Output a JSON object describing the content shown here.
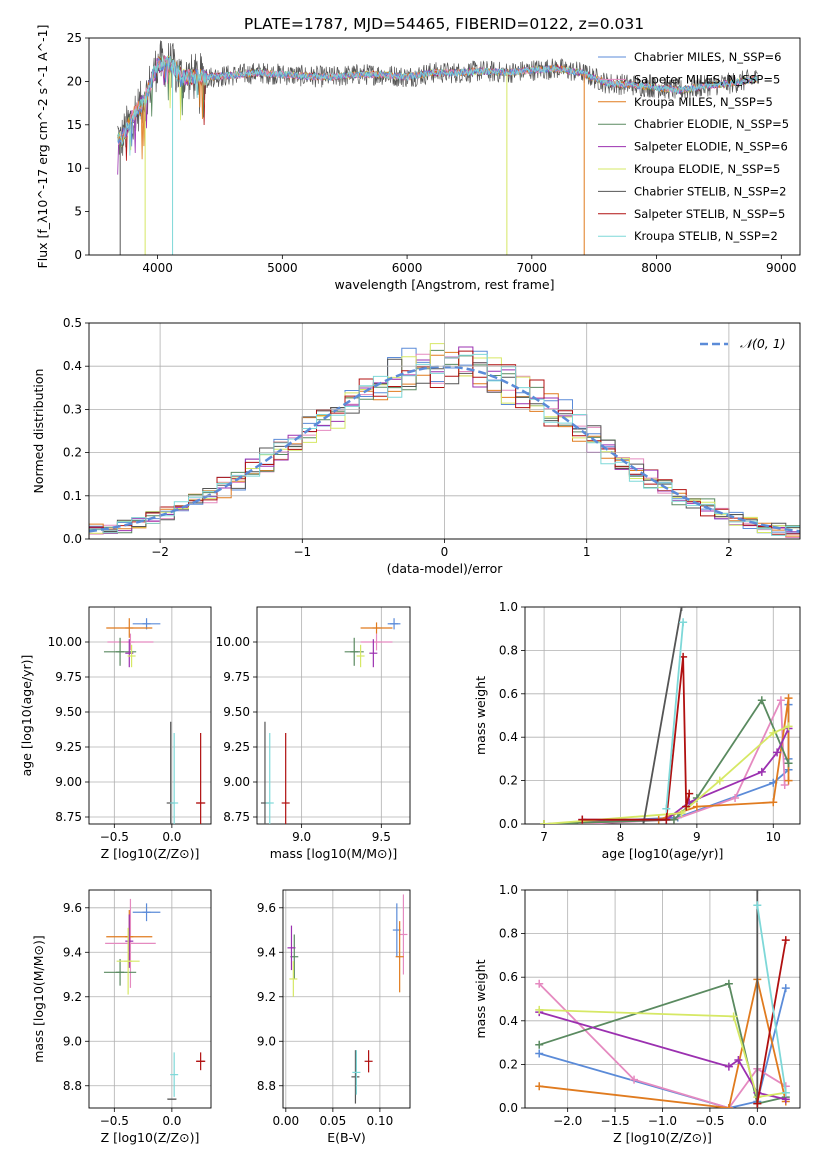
{
  "figure": {
    "title": "PLATE=1787, MJD=54465, FIBERID=0122, z=0.031"
  },
  "colors": {
    "chabrier_miles": "#5b8bd8",
    "salpeter_miles": "#e58ac0",
    "kroupa_miles": "#e07b1f",
    "chabrier_elodie": "#5a8a60",
    "salpeter_elodie": "#9b30b0",
    "kroupa_elodie": "#d6e865",
    "chabrier_stelib": "#555555",
    "salpeter_stelib": "#b01010",
    "kroupa_stelib": "#7ed8d8",
    "gaussian": "#5b8bd8"
  },
  "chart_data": [
    {
      "id": "spectrum",
      "type": "line",
      "title": "PLATE=1787, MJD=54465, FIBERID=0122, z=0.031",
      "xlabel": "wavelength [Angstrom, rest frame]",
      "ylabel": "Flux [f_λ10^-17 erg cm^-2 s^-1 A^-1]",
      "xlim": [
        3450,
        9150
      ],
      "ylim": [
        0,
        25
      ],
      "xticks": [
        4000,
        5000,
        6000,
        7000,
        8000,
        9000
      ],
      "yticks": [
        0,
        5,
        10,
        15,
        20,
        25
      ],
      "grid": false,
      "legend_position": "upper-right",
      "series": [
        {
          "name": "Chabrier MILES, N_SSP=6",
          "color_key": "chabrier_miles"
        },
        {
          "name": "Salpeter MILES, N_SSP=5",
          "color_key": "salpeter_miles"
        },
        {
          "name": "Kroupa MILES, N_SSP=5",
          "color_key": "kroupa_miles"
        },
        {
          "name": "Chabrier ELODIE, N_SSP=5",
          "color_key": "chabrier_elodie"
        },
        {
          "name": "Salpeter ELODIE, N_SSP=6",
          "color_key": "salpeter_elodie"
        },
        {
          "name": "Kroupa ELODIE, N_SSP=5",
          "color_key": "kroupa_elodie"
        },
        {
          "name": "Chabrier STELIB, N_SSP=2",
          "color_key": "chabrier_stelib"
        },
        {
          "name": "Salpeter STELIB, N_SSP=5",
          "color_key": "salpeter_stelib"
        },
        {
          "name": "Kroupa STELIB, N_SSP=2",
          "color_key": "kroupa_stelib"
        }
      ],
      "continuum": {
        "x": [
          3680,
          3700,
          3800,
          3900,
          4000,
          4100,
          4200,
          4400,
          4600,
          4800,
          5000,
          5200,
          5400,
          5600,
          5800,
          6000,
          6200,
          6400,
          6600,
          6800,
          7000,
          7200,
          7400,
          7600,
          7800,
          8000,
          8200,
          8400,
          8600,
          8800
        ],
        "y": [
          14,
          13,
          16,
          18,
          22,
          22,
          20.5,
          20.5,
          20.7,
          21,
          20.8,
          20.6,
          20.5,
          20.8,
          20.8,
          20.5,
          21,
          21,
          21.2,
          21,
          21.3,
          21.5,
          21,
          19.8,
          19.6,
          19.3,
          19,
          19.5,
          19.8,
          20.3
        ]
      },
      "dropouts": [
        {
          "x": 3700,
          "to": 0
        },
        {
          "x": 3900,
          "to": 0
        },
        {
          "x": 4120,
          "to": 0
        },
        {
          "x": 6800,
          "to": 0
        },
        {
          "x": 7420,
          "to": 0
        }
      ]
    },
    {
      "id": "residuals",
      "type": "bar",
      "xlabel": "(data-model)/error",
      "ylabel": "Normed distribution",
      "xlim": [
        -2.5,
        2.5
      ],
      "ylim": [
        0,
        0.5
      ],
      "xticks": [
        -2,
        -1,
        0,
        1,
        2
      ],
      "yticks": [
        0.0,
        0.1,
        0.2,
        0.3,
        0.4,
        0.5
      ],
      "grid": true,
      "legend_position": "upper-right",
      "legend": [
        "𝒩(0, 1)"
      ],
      "bin_width": 0.1,
      "gaussian": {
        "mean": 0,
        "sigma": 1
      }
    },
    {
      "id": "age_vs_Z",
      "type": "scatter",
      "xlabel": "Z [log10(Z/Z⊙)]",
      "ylabel": "age [log10(age/yr)]",
      "xlim": [
        -0.72,
        0.34
      ],
      "ylim": [
        8.7,
        10.25
      ],
      "xticks": [
        -0.5,
        0.0
      ],
      "yticks": [
        8.75,
        9.0,
        9.25,
        9.5,
        9.75,
        10.0
      ],
      "grid": true,
      "points": [
        {
          "x": -0.22,
          "y": 10.13,
          "dx": 0.12,
          "dy": 0.04,
          "c": "chabrier_miles"
        },
        {
          "x": -0.36,
          "y": 10.0,
          "dx": 0.2,
          "dy": 0.06,
          "c": "salpeter_miles"
        },
        {
          "x": -0.37,
          "y": 10.1,
          "dx": 0.2,
          "dy": 0.07,
          "c": "kroupa_miles"
        },
        {
          "x": -0.45,
          "y": 9.93,
          "dx": 0.14,
          "dy": 0.1,
          "c": "chabrier_elodie"
        },
        {
          "x": -0.37,
          "y": 9.92,
          "dx": 0.0,
          "dy": 0.1,
          "c": "salpeter_elodie"
        },
        {
          "x": -0.35,
          "y": 9.9,
          "dx": 0.0,
          "dy": 0.08,
          "c": "kroupa_elodie"
        },
        {
          "x": -0.01,
          "y": 8.85,
          "dx": 0.0,
          "dy": 0.58,
          "c": "chabrier_stelib"
        },
        {
          "x": 0.25,
          "y": 8.85,
          "dx": 0.04,
          "dy": 0.5,
          "c": "salpeter_stelib"
        },
        {
          "x": 0.02,
          "y": 8.85,
          "dx": 0.0,
          "dy": 0.5,
          "c": "kroupa_stelib"
        }
      ]
    },
    {
      "id": "age_vs_mass",
      "type": "scatter",
      "xlabel": "mass [log10(M/M⊙)]",
      "ylabel": "",
      "xlim": [
        8.72,
        9.68
      ],
      "ylim": [
        8.7,
        10.25
      ],
      "xticks": [
        9.0,
        9.5
      ],
      "yticks": [
        8.75,
        9.0,
        9.25,
        9.5,
        9.75,
        10.0
      ],
      "grid": true,
      "points": [
        {
          "x": 9.58,
          "y": 10.13,
          "dx": 0.04,
          "dy": 0.04,
          "c": "chabrier_miles"
        },
        {
          "x": 9.47,
          "y": 10.0,
          "dx": 0.1,
          "dy": 0.06,
          "c": "salpeter_miles"
        },
        {
          "x": 9.47,
          "y": 10.1,
          "dx": 0.1,
          "dy": 0.04,
          "c": "kroupa_miles"
        },
        {
          "x": 9.33,
          "y": 9.93,
          "dx": 0.06,
          "dy": 0.1,
          "c": "chabrier_elodie"
        },
        {
          "x": 9.45,
          "y": 9.92,
          "dx": 0.0,
          "dy": 0.1,
          "c": "salpeter_elodie"
        },
        {
          "x": 9.37,
          "y": 9.9,
          "dx": 0.0,
          "dy": 0.08,
          "c": "kroupa_elodie"
        },
        {
          "x": 8.77,
          "y": 8.85,
          "dx": 0.0,
          "dy": 0.58,
          "c": "chabrier_stelib"
        },
        {
          "x": 8.9,
          "y": 8.85,
          "dx": 0.0,
          "dy": 0.5,
          "c": "salpeter_stelib"
        },
        {
          "x": 8.8,
          "y": 8.85,
          "dx": 0.0,
          "dy": 0.5,
          "c": "kroupa_stelib"
        }
      ]
    },
    {
      "id": "weight_vs_age",
      "type": "line",
      "xlabel": "age [log10(age/yr)]",
      "ylabel": "mass weight",
      "xlim": [
        6.75,
        10.35
      ],
      "ylim": [
        0,
        1.0
      ],
      "xticks": [
        7,
        8,
        9,
        10
      ],
      "yticks": [
        0.0,
        0.2,
        0.4,
        0.6,
        0.8,
        1.0
      ],
      "grid": true,
      "series": [
        {
          "c": "chabrier_miles",
          "x": [
            7.0,
            8.75,
            10.0,
            10.2,
            10.2,
            10.2
          ],
          "y": [
            0.0,
            0.03,
            0.19,
            0.25,
            0.55,
            0.3
          ]
        },
        {
          "c": "salpeter_miles",
          "x": [
            7.5,
            8.7,
            9.5,
            10.1,
            10.15
          ],
          "y": [
            0.0,
            0.02,
            0.12,
            0.57,
            0.18
          ]
        },
        {
          "c": "kroupa_miles",
          "x": [
            7.0,
            8.5,
            9.0,
            10.0,
            10.2,
            10.2
          ],
          "y": [
            0.0,
            0.02,
            0.08,
            0.1,
            0.58,
            0.2
          ]
        },
        {
          "c": "chabrier_elodie",
          "x": [
            7.0,
            8.7,
            9.0,
            9.85,
            10.2
          ],
          "y": [
            0.0,
            0.02,
            0.12,
            0.57,
            0.28
          ]
        },
        {
          "c": "salpeter_elodie",
          "x": [
            7.5,
            8.6,
            8.9,
            9.85,
            10.05,
            10.2
          ],
          "y": [
            0.02,
            0.02,
            0.1,
            0.24,
            0.33,
            0.44
          ]
        },
        {
          "c": "kroupa_elodie",
          "x": [
            7.0,
            8.8,
            9.3,
            10.0,
            10.2
          ],
          "y": [
            0.0,
            0.05,
            0.2,
            0.42,
            0.45
          ]
        },
        {
          "c": "chabrier_stelib",
          "x": [
            8.3,
            8.8
          ],
          "y": [
            0.0,
            1.0
          ]
        },
        {
          "c": "salpeter_stelib",
          "x": [
            7.5,
            8.6,
            8.82,
            8.86,
            8.9
          ],
          "y": [
            0.02,
            0.02,
            0.77,
            0.08,
            0.14
          ]
        },
        {
          "c": "kroupa_stelib",
          "x": [
            8.6,
            8.82
          ],
          "y": [
            0.07,
            0.93
          ]
        }
      ]
    },
    {
      "id": "mass_vs_Z",
      "type": "scatter",
      "xlabel": "Z [log10(Z/Z⊙)]",
      "ylabel": "mass [log10(M/M⊙)]",
      "xlim": [
        -0.72,
        0.34
      ],
      "ylim": [
        8.7,
        9.68
      ],
      "xticks": [
        -0.5,
        0.0
      ],
      "yticks": [
        8.8,
        9.0,
        9.2,
        9.4,
        9.6
      ],
      "grid": true,
      "points": [
        {
          "x": -0.22,
          "y": 9.58,
          "dx": 0.12,
          "dy": 0.04,
          "c": "chabrier_miles"
        },
        {
          "x": -0.36,
          "y": 9.44,
          "dx": 0.22,
          "dy": 0.2,
          "c": "salpeter_miles"
        },
        {
          "x": -0.37,
          "y": 9.47,
          "dx": 0.2,
          "dy": 0.12,
          "c": "kroupa_miles"
        },
        {
          "x": -0.45,
          "y": 9.31,
          "dx": 0.14,
          "dy": 0.06,
          "c": "chabrier_elodie"
        },
        {
          "x": -0.37,
          "y": 9.45,
          "dx": 0.0,
          "dy": 0.12,
          "c": "salpeter_elodie"
        },
        {
          "x": -0.38,
          "y": 9.36,
          "dx": 0.1,
          "dy": 0.15,
          "c": "kroupa_elodie"
        },
        {
          "x": 0.0,
          "y": 8.74,
          "dx": 0.04,
          "dy": 0.0,
          "c": "chabrier_stelib"
        },
        {
          "x": 0.25,
          "y": 8.91,
          "dx": 0.04,
          "dy": 0.04,
          "c": "salpeter_stelib"
        },
        {
          "x": 0.02,
          "y": 8.85,
          "dx": 0.0,
          "dy": 0.1,
          "c": "kroupa_stelib"
        }
      ]
    },
    {
      "id": "mass_vs_EBV",
      "type": "scatter",
      "xlabel": "E(B-V)",
      "ylabel": "",
      "xlim": [
        -0.003,
        0.132
      ],
      "ylim": [
        8.7,
        9.68
      ],
      "xticks": [
        0.0,
        0.05,
        0.1
      ],
      "yticks": [
        8.8,
        9.0,
        9.2,
        9.4,
        9.6
      ],
      "grid": true,
      "points": [
        {
          "x": 0.118,
          "y": 9.5,
          "dx": 0.0,
          "dy": 0.12,
          "c": "chabrier_miles"
        },
        {
          "x": 0.125,
          "y": 9.48,
          "dx": 0.0,
          "dy": 0.18,
          "c": "salpeter_miles"
        },
        {
          "x": 0.121,
          "y": 9.38,
          "dx": 0.0,
          "dy": 0.16,
          "c": "kroupa_miles"
        },
        {
          "x": 0.009,
          "y": 9.38,
          "dx": 0.0,
          "dy": 0.1,
          "c": "chabrier_elodie"
        },
        {
          "x": 0.006,
          "y": 9.42,
          "dx": 0.0,
          "dy": 0.1,
          "c": "salpeter_elodie"
        },
        {
          "x": 0.008,
          "y": 9.28,
          "dx": 0.0,
          "dy": 0.08,
          "c": "kroupa_elodie"
        },
        {
          "x": 0.074,
          "y": 8.84,
          "dx": 0.0,
          "dy": 0.12,
          "c": "chabrier_stelib"
        },
        {
          "x": 0.088,
          "y": 8.91,
          "dx": 0.0,
          "dy": 0.05,
          "c": "salpeter_stelib"
        },
        {
          "x": 0.075,
          "y": 8.86,
          "dx": 0.0,
          "dy": 0.1,
          "c": "kroupa_stelib"
        }
      ]
    },
    {
      "id": "weight_vs_Z",
      "type": "line",
      "xlabel": "Z [log10(Z/Z⊙)]",
      "ylabel": "mass weight",
      "xlim": [
        -2.45,
        0.45
      ],
      "ylim": [
        0,
        1.0
      ],
      "xticks": [
        -2.0,
        -1.5,
        -1.0,
        -0.5,
        0.0
      ],
      "yticks": [
        0.0,
        0.2,
        0.4,
        0.6,
        0.8,
        1.0
      ],
      "grid": true,
      "series": [
        {
          "c": "chabrier_miles",
          "x": [
            -2.3,
            -0.3,
            0.0,
            0.3
          ],
          "y": [
            0.25,
            0.0,
            0.03,
            0.55
          ]
        },
        {
          "c": "salpeter_miles",
          "x": [
            -2.3,
            -1.3,
            -0.3,
            0.0,
            0.3
          ],
          "y": [
            0.57,
            0.13,
            0.0,
            0.18,
            0.1
          ]
        },
        {
          "c": "kroupa_miles",
          "x": [
            -2.3,
            -0.3,
            0.0,
            0.3
          ],
          "y": [
            0.1,
            0.0,
            0.59,
            0.03
          ]
        },
        {
          "c": "chabrier_elodie",
          "x": [
            -2.3,
            -0.3,
            0.0,
            0.3
          ],
          "y": [
            0.29,
            0.57,
            0.02,
            0.05
          ]
        },
        {
          "c": "salpeter_elodie",
          "x": [
            -2.3,
            -0.3,
            -0.2,
            0.0,
            0.3
          ],
          "y": [
            0.44,
            0.19,
            0.22,
            0.07,
            0.04
          ]
        },
        {
          "c": "kroupa_elodie",
          "x": [
            -2.3,
            -0.25,
            0.0,
            0.3
          ],
          "y": [
            0.45,
            0.42,
            0.05,
            0.07
          ]
        },
        {
          "c": "chabrier_stelib",
          "x": [
            0.0,
            0.0
          ],
          "y": [
            0.0,
            1.0
          ]
        },
        {
          "c": "salpeter_stelib",
          "x": [
            0.0,
            0.3
          ],
          "y": [
            0.02,
            0.77
          ]
        },
        {
          "c": "kroupa_stelib",
          "x": [
            0.0,
            0.3
          ],
          "y": [
            0.93,
            0.07
          ]
        }
      ]
    }
  ]
}
